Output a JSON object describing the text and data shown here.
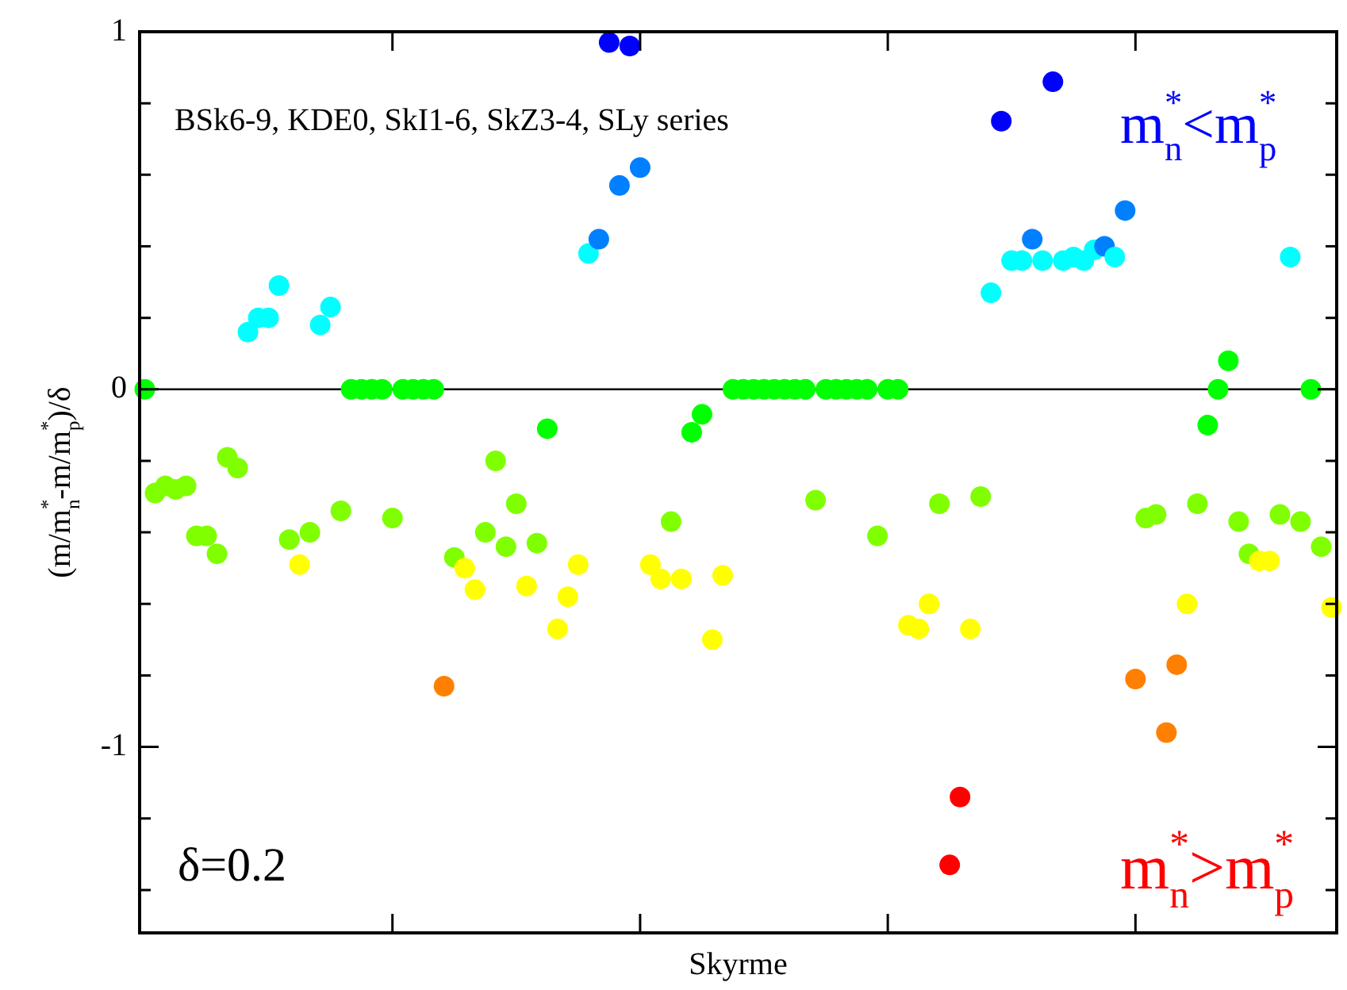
{
  "chart_data": {
    "type": "scatter",
    "xlabel": "Skyrme",
    "ylabel": "(m/m$_{n}$$^{*}$-m/m$_{p}$$^{*}$)/δ",
    "annotations": [
      "BSk6-9, KDE0, SkI1-6, SkZ3-4, SLy series",
      "m$_{n}$$^{*}$<m$_{p}$$^{*}$",
      "δ=0.2",
      "m$_{n}$$^{*}$>m$_{p}$$^{*}$"
    ],
    "categories": [
      null,
      null,
      null,
      null,
      null,
      null,
      null,
      null,
      null,
      null,
      null,
      null,
      null,
      null,
      null,
      null,
      null,
      null,
      null,
      null,
      null,
      null,
      null,
      null,
      null,
      null,
      null,
      null,
      null,
      null,
      null,
      null,
      null,
      null,
      null,
      null,
      null,
      null,
      null,
      null,
      null,
      null,
      null,
      null,
      null,
      null,
      null,
      null,
      null,
      null,
      null,
      null,
      null,
      null,
      null,
      null,
      null,
      null,
      null,
      null,
      null,
      null,
      null,
      null,
      null,
      null,
      null,
      null,
      null,
      null,
      null,
      null,
      null,
      null,
      null,
      null,
      null,
      null,
      null,
      null,
      null,
      null,
      null,
      null,
      null,
      null,
      null,
      null,
      null,
      null,
      null,
      null,
      null,
      null,
      null,
      null,
      null,
      null,
      null,
      null,
      null,
      null,
      null,
      null,
      null,
      null,
      null,
      null,
      null,
      null,
      null,
      null,
      null,
      null,
      null,
      null
    ],
    "ylim": [
      -1.52,
      1
    ],
    "yticks": [
      {
        "value": -1.4,
        "label": null
      },
      {
        "value": -1.2,
        "label": null
      },
      -1,
      {
        "value": -0.8,
        "label": null
      },
      {
        "value": -0.6,
        "label": null
      },
      {
        "value": -0.4,
        "label": null
      },
      {
        "value": -0.2,
        "label": null
      },
      0,
      {
        "value": 0.2,
        "label": null
      },
      {
        "value": 0.4,
        "label": null
      },
      {
        "value": 0.6,
        "label": null
      },
      {
        "value": 0.8,
        "label": null
      },
      1
    ],
    "tick_labels": "y",
    "grid": false,
    "legend": false,
    "marker": "circle",
    "ref_lines": [
      {
        "axis": "y",
        "value": 0,
        "color": "#000000"
      }
    ],
    "series": [
      {
        "values": [
          0,
          -0.29,
          -0.27,
          -0.28,
          -0.27,
          -0.41,
          -0.41,
          -0.46,
          -0.19,
          -0.22,
          0.16,
          0.2,
          0.2,
          0.29,
          -0.42,
          -0.49,
          -0.4,
          0.18,
          0.23,
          -0.34,
          0,
          0,
          0,
          0,
          -0.36,
          0,
          0,
          0,
          0,
          -0.83,
          -0.47,
          -0.5,
          -0.56,
          -0.4,
          -0.2,
          -0.44,
          -0.32,
          -0.55,
          -0.43,
          -0.11,
          -0.67,
          -0.58,
          -0.49,
          0.38,
          0.42,
          0.97,
          0.57,
          0.96,
          0.62,
          -0.49,
          -0.53,
          -0.37,
          -0.53,
          -0.12,
          -0.07,
          -0.7,
          -0.52,
          0,
          0,
          0,
          0,
          0,
          0,
          0,
          0,
          -0.31,
          0,
          0,
          0,
          0,
          0,
          -0.41,
          0,
          0,
          -0.66,
          -0.67,
          -0.6,
          -0.32,
          -1.33,
          -1.14,
          -0.67,
          -0.3,
          0.27,
          0.75,
          0.36,
          0.36,
          0.42,
          0.36,
          0.86,
          0.36,
          0.37,
          0.36,
          0.39,
          0.4,
          0.37,
          0.5,
          -0.81,
          -0.36,
          -0.35,
          -0.96,
          -0.77,
          -0.6,
          -0.32,
          -0.1,
          0,
          0.08,
          -0.37,
          -0.46,
          -0.48,
          -0.48,
          -0.35,
          0.37,
          -0.37,
          0,
          -0.44,
          -0.61
        ],
        "colors": [
          "#00ff00",
          "#80ff00",
          "#80ff00",
          "#80ff00",
          "#80ff00",
          "#80ff00",
          "#80ff00",
          "#80ff00",
          "#80ff00",
          "#80ff00",
          "#00ffff",
          "#00ffff",
          "#00ffff",
          "#00ffff",
          "#80ff00",
          "#ffff00",
          "#80ff00",
          "#00ffff",
          "#00ffff",
          "#80ff00",
          "#00ff00",
          "#00ff00",
          "#00ff00",
          "#00ff00",
          "#80ff00",
          "#00ff00",
          "#00ff00",
          "#00ff00",
          "#00ff00",
          "#ff8000",
          "#80ff00",
          "#ffff00",
          "#ffff00",
          "#80ff00",
          "#80ff00",
          "#80ff00",
          "#80ff00",
          "#ffff00",
          "#80ff00",
          "#00ff00",
          "#ffff00",
          "#ffff00",
          "#ffff00",
          "#00ffff",
          "#0080ff",
          "#0000ff",
          "#0080ff",
          "#0000ff",
          "#0080ff",
          "#ffff00",
          "#ffff00",
          "#80ff00",
          "#ffff00",
          "#00ff00",
          "#00ff00",
          "#ffff00",
          "#ffff00",
          "#00ff00",
          "#00ff00",
          "#00ff00",
          "#00ff00",
          "#00ff00",
          "#00ff00",
          "#00ff00",
          "#00ff00",
          "#80ff00",
          "#00ff00",
          "#00ff00",
          "#00ff00",
          "#00ff00",
          "#00ff00",
          "#80ff00",
          "#00ff00",
          "#00ff00",
          "#ffff00",
          "#ffff00",
          "#ffff00",
          "#80ff00",
          "#ff0000",
          "#ff0000",
          "#ffff00",
          "#80ff00",
          "#00ffff",
          "#0000ff",
          "#00ffff",
          "#00ffff",
          "#0080ff",
          "#00ffff",
          "#0000ff",
          "#00ffff",
          "#00ffff",
          "#00ffff",
          "#00ffff",
          "#0080ff",
          "#00ffff",
          "#0080ff",
          "#ff8000",
          "#80ff00",
          "#80ff00",
          "#ff8000",
          "#ff8000",
          "#ffff00",
          "#80ff00",
          "#00ff00",
          "#00ff00",
          "#00ff00",
          "#80ff00",
          "#80ff00",
          "#ffff00",
          "#ffff00",
          "#80ff00",
          "#00ffff",
          "#80ff00",
          "#00ff00",
          "#80ff00",
          "#ffff00"
        ]
      }
    ]
  }
}
